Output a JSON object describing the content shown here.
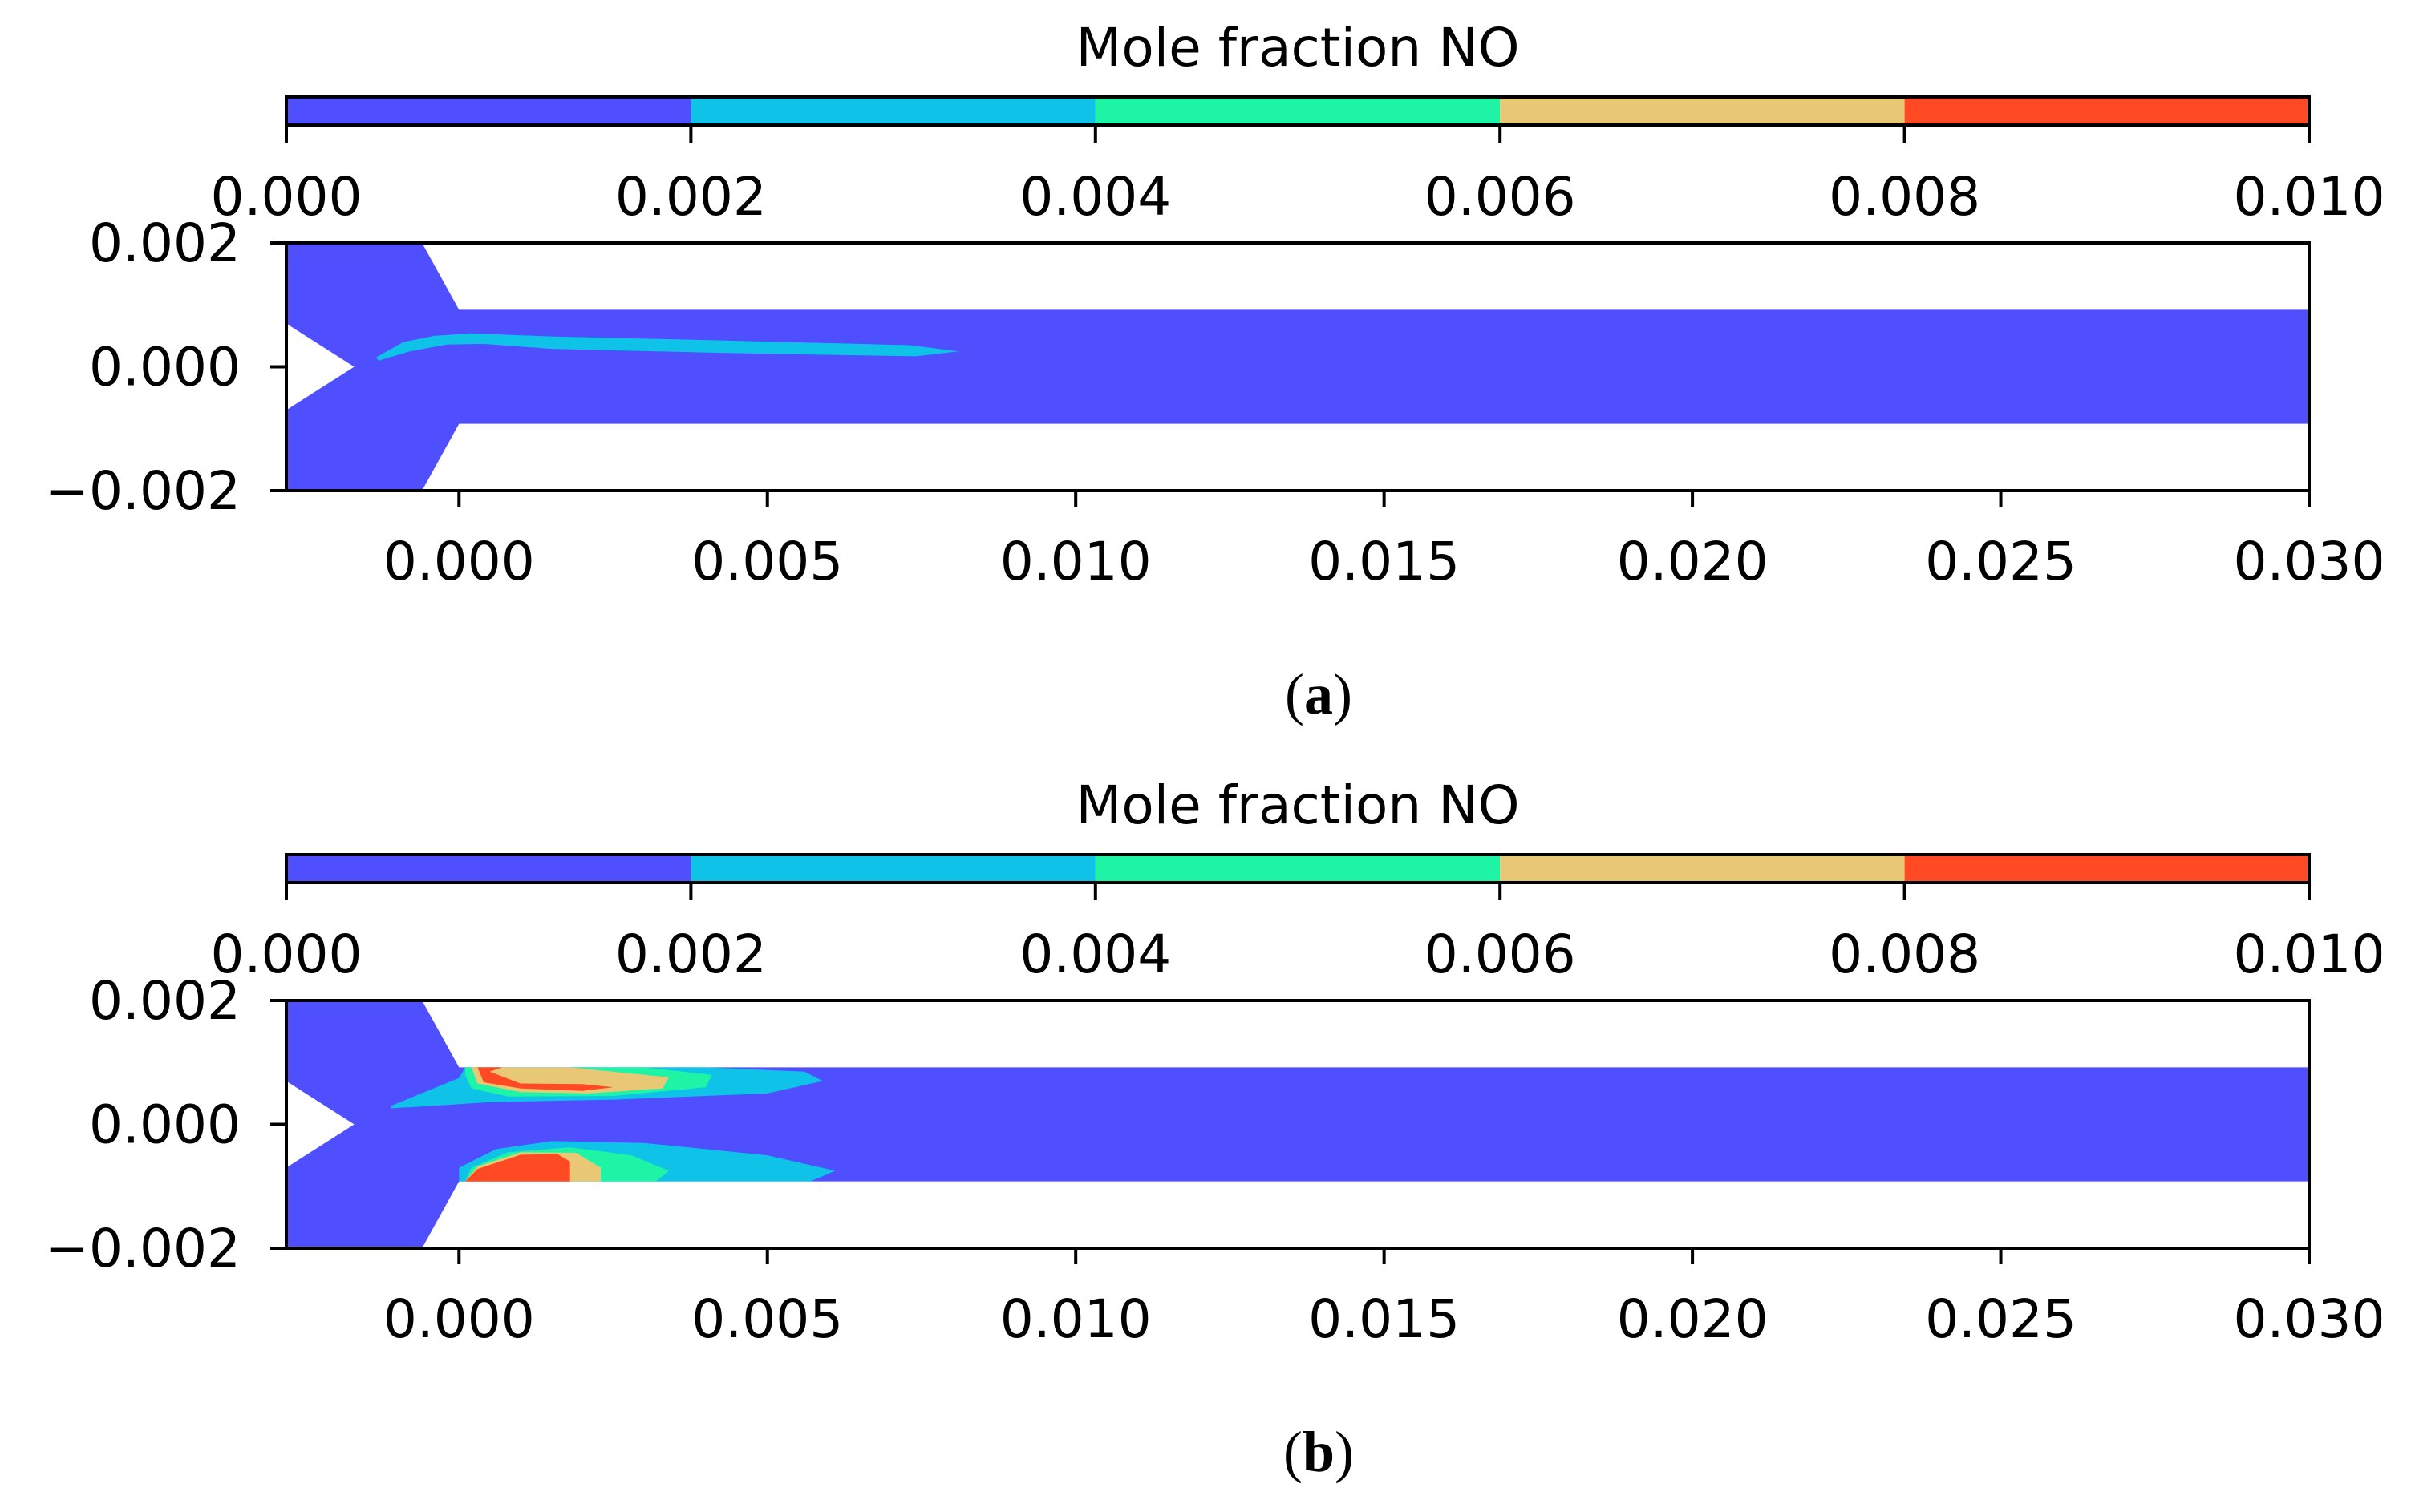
{
  "chart_data": [
    {
      "type": "heatmap",
      "caption": "a",
      "colorbar": {
        "label": "Mole fraction NO",
        "ticks": [
          "0.000",
          "0.002",
          "0.004",
          "0.006",
          "0.008",
          "0.010"
        ],
        "range": [
          0.0,
          0.01
        ],
        "levels": [
          0.0,
          0.002,
          0.004,
          0.006,
          0.008,
          0.01
        ],
        "colors": [
          "#4f4fff",
          "#0fc3e8",
          "#1ef4a6",
          "#e9c875",
          "#ff4a24"
        ]
      },
      "xlim": [
        -0.0028,
        0.03
      ],
      "ylim": [
        -0.002,
        0.002
      ],
      "xticks": [
        "0.000",
        "0.005",
        "0.010",
        "0.015",
        "0.020",
        "0.025",
        "0.030"
      ],
      "yticks": [
        "0.002",
        "0.000",
        "−0.002"
      ],
      "geometry": {
        "channel_half_width": 0.00092,
        "junction_x": 0.0,
        "inlet_apex_x": -0.0017,
        "inlet_width": 0.0011
      },
      "regions": [
        {
          "level": "0.002–0.004",
          "color": "#0fc3e8",
          "outline": [
            [
              -0.00135,
              0.00015
            ],
            [
              -0.0009,
              0.0004
            ],
            [
              -0.0004,
              0.0005
            ],
            [
              0.0002,
              0.00054
            ],
            [
              0.0015,
              0.00049
            ],
            [
              0.0045,
              0.00042
            ],
            [
              0.0073,
              0.00035
            ],
            [
              0.0081,
              0.00025
            ],
            [
              0.0074,
              0.00017
            ],
            [
              0.0045,
              0.00022
            ],
            [
              0.0015,
              0.00029
            ],
            [
              0.0004,
              0.00037
            ],
            [
              -0.0002,
              0.00036
            ],
            [
              -0.0008,
              0.00025
            ],
            [
              -0.0013,
              0.0001
            ]
          ]
        }
      ]
    },
    {
      "type": "heatmap",
      "caption": "b",
      "colorbar": {
        "label": "Mole fraction NO",
        "ticks": [
          "0.000",
          "0.002",
          "0.004",
          "0.006",
          "0.008",
          "0.010"
        ],
        "range": [
          0.0,
          0.01
        ],
        "levels": [
          0.0,
          0.002,
          0.004,
          0.006,
          0.008,
          0.01
        ],
        "colors": [
          "#4f4fff",
          "#0fc3e8",
          "#1ef4a6",
          "#e9c875",
          "#ff4a24"
        ]
      },
      "xlim": [
        -0.0028,
        0.03
      ],
      "ylim": [
        -0.002,
        0.002
      ],
      "xticks": [
        "0.000",
        "0.005",
        "0.010",
        "0.015",
        "0.020",
        "0.025",
        "0.030"
      ],
      "yticks": [
        "0.002",
        "0.000",
        "−0.002"
      ],
      "geometry": {
        "channel_half_width": 0.00092,
        "junction_x": 0.0,
        "inlet_apex_x": -0.0017,
        "inlet_width": 0.0011
      },
      "regions": [
        {
          "level": "0.002–0.004",
          "color": "#0fc3e8",
          "outline": [
            [
              -0.0011,
              0.0003
            ],
            [
              0.0,
              0.00075
            ],
            [
              0.0001,
              0.00092
            ],
            [
              0.004,
              0.00092
            ],
            [
              0.0056,
              0.00085
            ],
            [
              0.0059,
              0.0007
            ],
            [
              0.005,
              0.0005
            ],
            [
              0.0025,
              0.0004
            ],
            [
              0.0005,
              0.00036
            ],
            [
              -0.0004,
              0.0003
            ],
            [
              -0.0011,
              0.00026
            ]
          ]
        },
        {
          "level": "0.004–0.006",
          "color": "#1ef4a6",
          "outline": [
            [
              0.0001,
              0.00092
            ],
            [
              0.003,
              0.00092
            ],
            [
              0.0041,
              0.0008
            ],
            [
              0.004,
              0.0006
            ],
            [
              0.0025,
              0.00046
            ],
            [
              0.0008,
              0.00045
            ],
            [
              0.0002,
              0.00058
            ],
            [
              0.0001,
              0.0008
            ]
          ]
        },
        {
          "level": "0.006–0.008",
          "color": "#e9c875",
          "outline": [
            [
              0.0002,
              0.00092
            ],
            [
              0.0018,
              0.00092
            ],
            [
              0.0034,
              0.00076
            ],
            [
              0.0033,
              0.00058
            ],
            [
              0.0021,
              0.0005
            ],
            [
              0.001,
              0.00052
            ],
            [
              0.0003,
              0.00066
            ]
          ]
        },
        {
          "level": "0.008–0.010",
          "color": "#ff4a24",
          "outline": [
            [
              0.0003,
              0.00092
            ],
            [
              0.0007,
              0.00092
            ],
            [
              0.0005,
              0.00085
            ],
            [
              0.001,
              0.00066
            ],
            [
              0.002,
              0.00065
            ],
            [
              0.0025,
              0.0006
            ],
            [
              0.002,
              0.00054
            ],
            [
              0.001,
              0.00058
            ],
            [
              0.0004,
              0.00068
            ]
          ]
        },
        {
          "level": "0.002–0.004",
          "color": "#0fc3e8",
          "outline": [
            [
              0.0,
              -0.00092
            ],
            [
              0.0,
              -0.0007
            ],
            [
              0.0006,
              -0.0004
            ],
            [
              0.0015,
              -0.00027
            ],
            [
              0.003,
              -0.0003
            ],
            [
              0.005,
              -0.0005
            ],
            [
              0.0061,
              -0.00075
            ],
            [
              0.0057,
              -0.00092
            ]
          ]
        },
        {
          "level": "0.004–0.006",
          "color": "#1ef4a6",
          "outline": [
            [
              0.0001,
              -0.00092
            ],
            [
              0.0002,
              -0.0007
            ],
            [
              0.0008,
              -0.00045
            ],
            [
              0.0018,
              -0.00037
            ],
            [
              0.0028,
              -0.0005
            ],
            [
              0.0034,
              -0.00075
            ],
            [
              0.0032,
              -0.00092
            ]
          ]
        },
        {
          "level": "0.006–0.008",
          "color": "#e9c875",
          "outline": [
            [
              0.0001,
              -0.00092
            ],
            [
              0.0003,
              -0.00068
            ],
            [
              0.001,
              -0.00045
            ],
            [
              0.0019,
              -0.00046
            ],
            [
              0.0023,
              -0.0007
            ],
            [
              0.0023,
              -0.00092
            ]
          ]
        },
        {
          "level": "0.008–0.010",
          "color": "#ff4a24",
          "outline": [
            [
              0.0001,
              -0.00092
            ],
            [
              0.0003,
              -0.00072
            ],
            [
              0.001,
              -0.00049
            ],
            [
              0.0016,
              -0.00048
            ],
            [
              0.0018,
              -0.0006
            ],
            [
              0.0018,
              -0.00092
            ]
          ]
        }
      ]
    }
  ]
}
